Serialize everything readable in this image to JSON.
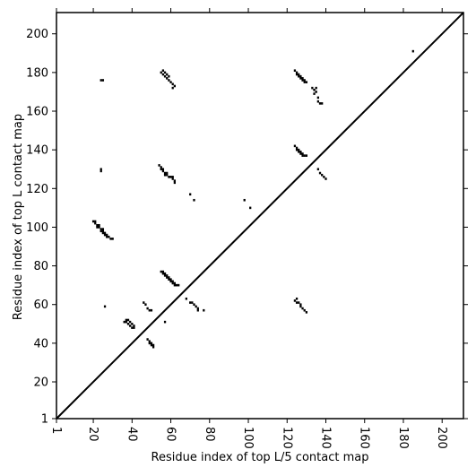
{
  "chart_data": {
    "type": "heatmap",
    "subtype": "contact-map-scatter",
    "xlabel": "Residue index of top L/5 contact map",
    "ylabel": "Residue index of top L contact map",
    "xlim": [
      1,
      211
    ],
    "ylim": [
      1,
      211
    ],
    "x_ticks": [
      1,
      20,
      40,
      60,
      80,
      100,
      120,
      140,
      160,
      180,
      200
    ],
    "y_ticks": [
      1,
      20,
      40,
      60,
      80,
      100,
      120,
      140,
      160,
      180,
      200
    ],
    "x_tick_rotation_deg": -90,
    "diagonal_line": true,
    "grid": false,
    "marker_color": "#000000",
    "series": [
      {
        "values": [
          [
            24,
            176
          ],
          [
            25,
            176
          ],
          [
            55,
            180
          ],
          [
            56,
            181
          ],
          [
            56,
            179
          ],
          [
            57,
            180
          ],
          [
            57,
            178
          ],
          [
            58,
            179
          ],
          [
            58,
            177
          ],
          [
            59,
            178
          ],
          [
            59,
            176
          ],
          [
            60,
            175
          ],
          [
            61,
            174
          ],
          [
            62,
            173
          ],
          [
            61,
            172
          ],
          [
            24,
            130
          ],
          [
            24,
            129
          ],
          [
            54,
            132
          ],
          [
            55,
            131
          ],
          [
            55,
            130
          ],
          [
            56,
            130
          ],
          [
            56,
            129
          ],
          [
            57,
            128
          ],
          [
            57,
            127
          ],
          [
            58,
            128
          ],
          [
            58,
            127
          ],
          [
            59,
            126
          ],
          [
            60,
            126
          ],
          [
            61,
            125
          ],
          [
            62,
            124
          ],
          [
            62,
            123
          ],
          [
            61,
            126
          ],
          [
            70,
            117
          ],
          [
            72,
            114
          ],
          [
            20,
            103
          ],
          [
            21,
            103
          ],
          [
            21,
            102
          ],
          [
            22,
            101
          ],
          [
            22,
            100
          ],
          [
            23,
            101
          ],
          [
            23,
            100
          ],
          [
            24,
            99
          ],
          [
            24,
            98
          ],
          [
            25,
            99
          ],
          [
            25,
            98
          ],
          [
            25,
            97
          ],
          [
            26,
            97
          ],
          [
            26,
            96
          ],
          [
            27,
            96
          ],
          [
            27,
            95
          ],
          [
            28,
            95
          ],
          [
            29,
            94
          ],
          [
            30,
            94
          ],
          [
            55,
            77
          ],
          [
            56,
            77
          ],
          [
            56,
            76
          ],
          [
            57,
            76
          ],
          [
            57,
            75
          ],
          [
            58,
            75
          ],
          [
            58,
            74
          ],
          [
            59,
            74
          ],
          [
            59,
            73
          ],
          [
            60,
            73
          ],
          [
            60,
            72
          ],
          [
            61,
            72
          ],
          [
            61,
            71
          ],
          [
            62,
            71
          ],
          [
            62,
            70
          ],
          [
            63,
            70
          ],
          [
            64,
            70
          ],
          [
            26,
            59
          ],
          [
            36,
            51
          ],
          [
            37,
            52
          ],
          [
            37,
            51
          ],
          [
            38,
            52
          ],
          [
            38,
            50
          ],
          [
            39,
            51
          ],
          [
            39,
            49
          ],
          [
            40,
            50
          ],
          [
            40,
            48
          ],
          [
            41,
            49
          ],
          [
            41,
            48
          ],
          [
            46,
            61
          ],
          [
            47,
            60
          ],
          [
            48,
            58
          ],
          [
            49,
            57
          ],
          [
            50,
            57
          ],
          [
            57,
            51
          ],
          [
            48,
            42
          ],
          [
            49,
            41
          ],
          [
            49,
            40
          ],
          [
            50,
            40
          ],
          [
            51,
            39
          ],
          [
            51,
            38
          ],
          [
            50,
            39
          ],
          [
            68,
            63
          ],
          [
            70,
            61
          ],
          [
            71,
            61
          ],
          [
            72,
            60
          ],
          [
            73,
            59
          ],
          [
            74,
            58
          ],
          [
            74,
            57
          ],
          [
            77,
            57
          ],
          [
            98,
            114
          ],
          [
            101,
            110
          ],
          [
            124,
            181
          ],
          [
            125,
            180
          ],
          [
            125,
            179
          ],
          [
            126,
            179
          ],
          [
            126,
            178
          ],
          [
            127,
            178
          ],
          [
            127,
            177
          ],
          [
            128,
            177
          ],
          [
            128,
            176
          ],
          [
            129,
            176
          ],
          [
            129,
            175
          ],
          [
            130,
            175
          ],
          [
            133,
            172
          ],
          [
            134,
            171
          ],
          [
            135,
            170
          ],
          [
            135,
            172
          ],
          [
            134,
            169
          ],
          [
            136,
            167
          ],
          [
            136,
            165
          ],
          [
            137,
            164
          ],
          [
            138,
            164
          ],
          [
            124,
            142
          ],
          [
            125,
            141
          ],
          [
            125,
            140
          ],
          [
            126,
            140
          ],
          [
            126,
            139
          ],
          [
            127,
            139
          ],
          [
            127,
            138
          ],
          [
            128,
            138
          ],
          [
            128,
            137
          ],
          [
            129,
            137
          ],
          [
            130,
            137
          ],
          [
            136,
            130
          ],
          [
            137,
            128
          ],
          [
            138,
            127
          ],
          [
            139,
            126
          ],
          [
            140,
            125
          ],
          [
            124,
            62
          ],
          [
            125,
            63
          ],
          [
            125,
            61
          ],
          [
            126,
            61
          ],
          [
            127,
            60
          ],
          [
            127,
            59
          ],
          [
            128,
            58
          ],
          [
            129,
            57
          ],
          [
            130,
            56
          ],
          [
            185,
            191
          ]
        ]
      }
    ]
  }
}
